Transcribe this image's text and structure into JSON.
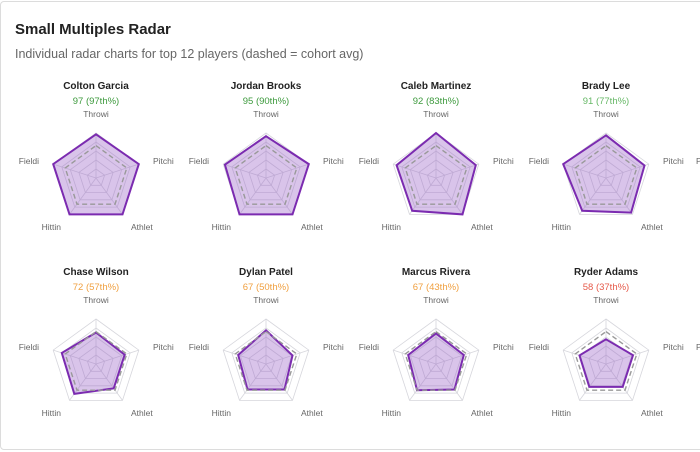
{
  "header": {
    "title": "Small Multiples Radar",
    "subtitle": "Individual radar charts for top 12 players (dashed = cohort avg)"
  },
  "colors": {
    "player_stroke": "#7b2bb0",
    "player_fill": "rgba(155,100,200,0.38)",
    "avg_stroke": "#999999",
    "grid": "#d6d6dc",
    "score_high": "#3d9a3d",
    "score_good": "#66b866",
    "score_mid": "#f0a040",
    "score_low": "#e65a4a"
  },
  "chart_data": {
    "type": "radar",
    "title": "Small Multiples Radar",
    "subtitle": "Individual radar charts for top 12 players (dashed = cohort avg)",
    "axes": [
      "Throwi",
      "Pitchi",
      "Athlet",
      "Hittin",
      "Fieldi"
    ],
    "range": [
      0,
      100
    ],
    "grid_levels": 5,
    "cohort_avg": [
      72,
      72,
      72,
      72,
      72
    ],
    "players": [
      {
        "name": "Colton Garcia",
        "score": "97 (97th%)",
        "tier": "score_high",
        "values": [
          97,
          100,
          100,
          100,
          100
        ]
      },
      {
        "name": "Jordan Brooks",
        "score": "95 (90th%)",
        "tier": "score_high",
        "values": [
          93,
          100,
          100,
          100,
          96
        ]
      },
      {
        "name": "Caleb Martinez",
        "score": "92 (83th%)",
        "tier": "score_high",
        "values": [
          100,
          93,
          100,
          90,
          92
        ]
      },
      {
        "name": "Brady Lee",
        "score": "91 (77th%)",
        "tier": "score_good",
        "values": [
          95,
          90,
          95,
          90,
          100
        ]
      },
      {
        "name": "Chase Wilson",
        "score": "72 (57th%)",
        "tier": "score_mid",
        "values": [
          70,
          67,
          67,
          82,
          80
        ]
      },
      {
        "name": "Dylan Patel",
        "score": "67 (50th%)",
        "tier": "score_mid",
        "values": [
          75,
          62,
          70,
          70,
          65
        ]
      },
      {
        "name": "Marcus Rivera",
        "score": "67 (43th%)",
        "tier": "score_mid",
        "values": [
          68,
          65,
          70,
          72,
          65
        ]
      },
      {
        "name": "Ryder Adams",
        "score": "58 (37th%)",
        "tier": "score_low",
        "values": [
          55,
          63,
          63,
          63,
          62
        ]
      }
    ]
  },
  "cut_off_next_label": "P"
}
